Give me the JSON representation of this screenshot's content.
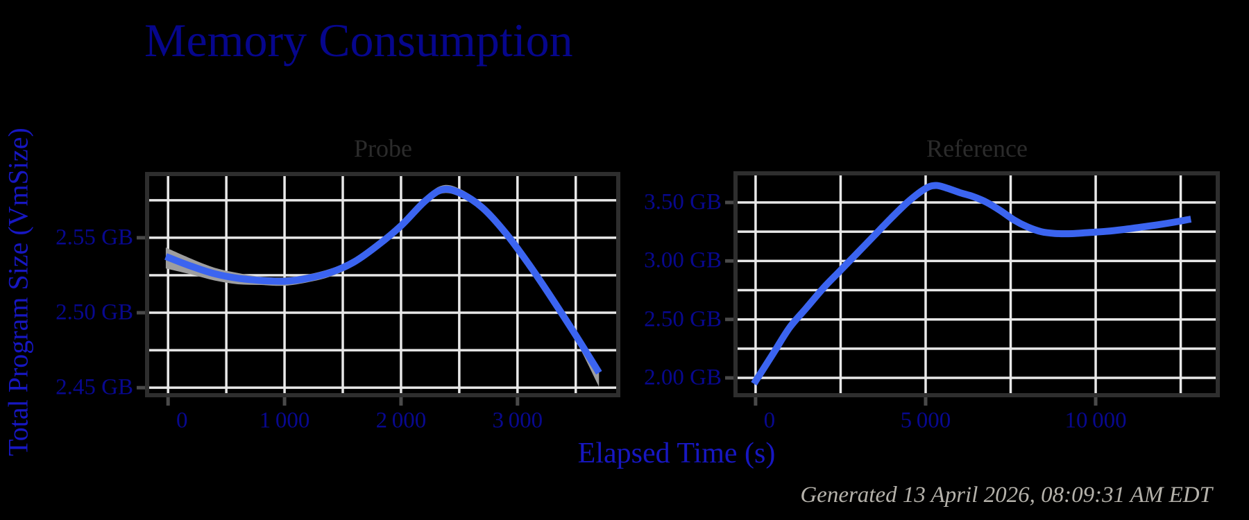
{
  "title": "Memory Consumption",
  "y_axis_label": "Total Program Size (VmSize)",
  "x_axis_label": "Elapsed Time (s)",
  "generated_note": "Generated 13 April 2026, 08:09:31 AM EDT",
  "colors": {
    "background": "#000000",
    "title": "#06068c",
    "axis_label": "#1717c2",
    "tick_label": "#08088f",
    "panel_title": "#2b2b2b",
    "gridline": "#e8e8e8",
    "border": "#2e2e2e",
    "tick_mark": "#4a4a4a",
    "line": "#3b64f0",
    "band": "#9e9e9e",
    "timestamp": "#b5b2ab"
  },
  "chart_data": [
    {
      "type": "line",
      "title": "Probe",
      "xlabel": "Elapsed Time (s)",
      "ylabel": "Total Program Size (VmSize)",
      "xlim": [
        -180,
        3865
      ],
      "ylim": [
        2.445,
        2.5925
      ],
      "grid": true,
      "legend": "none",
      "x_gridlines": [
        0,
        500,
        1000,
        1500,
        2000,
        2500,
        3000,
        3500
      ],
      "y_gridlines": [
        2.45,
        2.475,
        2.5,
        2.525,
        2.55,
        2.575
      ],
      "x_ticks": [
        {
          "v": 0,
          "label": "0",
          "dx": 20
        },
        {
          "v": 1000,
          "label": "1 000"
        },
        {
          "v": 2000,
          "label": "2 000"
        },
        {
          "v": 3000,
          "label": "3 000"
        }
      ],
      "y_ticks": [
        {
          "v": 2.45,
          "label": "2.45 GB"
        },
        {
          "v": 2.5,
          "label": "2.50 GB"
        },
        {
          "v": 2.55,
          "label": "2.55 GB"
        }
      ],
      "series": [
        {
          "name": "VmSize",
          "points": [
            [
              -20,
              2.5375
            ],
            [
              200,
              2.531
            ],
            [
              400,
              2.526
            ],
            [
              600,
              2.523
            ],
            [
              800,
              2.5215
            ],
            [
              1000,
              2.521
            ],
            [
              1200,
              2.523
            ],
            [
              1400,
              2.527
            ],
            [
              1600,
              2.534
            ],
            [
              1800,
              2.545
            ],
            [
              2000,
              2.558
            ],
            [
              2200,
              2.574
            ],
            [
              2350,
              2.582
            ],
            [
              2500,
              2.58
            ],
            [
              2700,
              2.57
            ],
            [
              2900,
              2.553
            ],
            [
              3100,
              2.532
            ],
            [
              3300,
              2.509
            ],
            [
              3500,
              2.485
            ],
            [
              3700,
              2.46
            ]
          ]
        }
      ],
      "band": {
        "upper": [
          [
            -20,
            2.5435
          ],
          [
            200,
            2.536
          ],
          [
            400,
            2.53
          ],
          [
            600,
            2.5265
          ],
          [
            800,
            2.524
          ],
          [
            1000,
            2.5235
          ],
          [
            1200,
            2.5255
          ],
          [
            1400,
            2.5295
          ],
          [
            1600,
            2.536
          ],
          [
            1800,
            2.547
          ],
          [
            2000,
            2.56
          ],
          [
            2200,
            2.5765
          ],
          [
            2350,
            2.5848
          ],
          [
            2500,
            2.5828
          ],
          [
            2700,
            2.5725
          ],
          [
            2900,
            2.555
          ],
          [
            3100,
            2.534
          ],
          [
            3300,
            2.5115
          ],
          [
            3500,
            2.488
          ],
          [
            3700,
            2.4625
          ]
        ],
        "lower": [
          [
            -20,
            2.5295
          ],
          [
            200,
            2.5255
          ],
          [
            400,
            2.5215
          ],
          [
            600,
            2.519
          ],
          [
            800,
            2.5185
          ],
          [
            1000,
            2.518
          ],
          [
            1200,
            2.5203
          ],
          [
            1400,
            2.5243
          ],
          [
            1600,
            2.5315
          ],
          [
            1800,
            2.5427
          ],
          [
            2000,
            2.5558
          ],
          [
            2200,
            2.5718
          ],
          [
            2350,
            2.5795
          ],
          [
            2500,
            2.5775
          ],
          [
            2700,
            2.5675
          ],
          [
            2900,
            2.5505
          ],
          [
            3100,
            2.5295
          ],
          [
            3300,
            2.506
          ],
          [
            3500,
            2.4815
          ],
          [
            3700,
            2.4505
          ]
        ]
      }
    },
    {
      "type": "line",
      "title": "Reference",
      "xlabel": "Elapsed Time (s)",
      "ylabel": "Total Program Size (VmSize)",
      "xlim": [
        -590,
        13590
      ],
      "ylim": [
        1.852,
        3.749
      ],
      "grid": true,
      "legend": "none",
      "x_gridlines": [
        0,
        2500,
        5000,
        7500,
        10000,
        12500
      ],
      "y_gridlines": [
        2.0,
        2.25,
        2.5,
        2.75,
        3.0,
        3.25,
        3.5
      ],
      "x_ticks": [
        {
          "v": 0,
          "label": "0",
          "dx": 20
        },
        {
          "v": 5000,
          "label": "5 000"
        },
        {
          "v": 10000,
          "label": "10 000"
        }
      ],
      "y_ticks": [
        {
          "v": 2.0,
          "label": "2.00 GB"
        },
        {
          "v": 2.5,
          "label": "2.50 GB"
        },
        {
          "v": 3.0,
          "label": "3.00 GB"
        },
        {
          "v": 3.5,
          "label": "3.50 GB"
        }
      ],
      "series": [
        {
          "name": "VmSize",
          "points": [
            [
              -50,
              1.95
            ],
            [
              500,
              2.2
            ],
            [
              1000,
              2.43
            ],
            [
              1500,
              2.6
            ],
            [
              2000,
              2.77
            ],
            [
              2500,
              2.92
            ],
            [
              3000,
              3.07
            ],
            [
              3500,
              3.22
            ],
            [
              4000,
              3.37
            ],
            [
              4500,
              3.51
            ],
            [
              5000,
              3.62
            ],
            [
              5300,
              3.645
            ],
            [
              5600,
              3.625
            ],
            [
              6000,
              3.585
            ],
            [
              6400,
              3.55
            ],
            [
              6800,
              3.5
            ],
            [
              7200,
              3.43
            ],
            [
              7600,
              3.35
            ],
            [
              8000,
              3.29
            ],
            [
              8400,
              3.25
            ],
            [
              8800,
              3.235
            ],
            [
              9300,
              3.233
            ],
            [
              9800,
              3.243
            ],
            [
              10300,
              3.253
            ],
            [
              10800,
              3.268
            ],
            [
              11300,
              3.288
            ],
            [
              11800,
              3.308
            ],
            [
              12300,
              3.331
            ],
            [
              12800,
              3.358
            ]
          ]
        }
      ],
      "band": null
    }
  ]
}
